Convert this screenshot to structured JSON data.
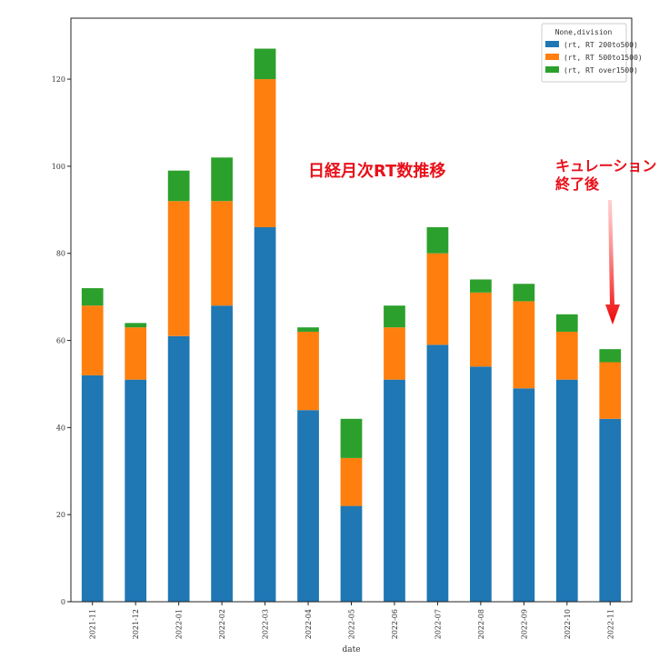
{
  "chart_data": {
    "type": "bar",
    "stacked": true,
    "categories": [
      "2021-11",
      "2021-12",
      "2022-01",
      "2022-02",
      "2022-03",
      "2022-04",
      "2022-05",
      "2022-06",
      "2022-07",
      "2022-08",
      "2022-09",
      "2022-10",
      "2022-11"
    ],
    "series": [
      {
        "name": "(rt, RT 200to500)",
        "color": "#1f77b4",
        "values": [
          52,
          51,
          61,
          68,
          86,
          44,
          22,
          51,
          59,
          54,
          49,
          51,
          42
        ]
      },
      {
        "name": "(rt, RT 500to1500)",
        "color": "#ff7f0e",
        "values": [
          16,
          12,
          31,
          24,
          34,
          18,
          11,
          12,
          21,
          17,
          20,
          11,
          13
        ]
      },
      {
        "name": "(rt, RT over1500)",
        "color": "#2ca02c",
        "values": [
          4,
          1,
          7,
          10,
          7,
          1,
          9,
          5,
          6,
          3,
          4,
          4,
          3
        ]
      }
    ],
    "xlabel": "date",
    "ylabel": "",
    "ylim": [
      0,
      134
    ],
    "yticks": [
      0,
      20,
      40,
      60,
      80,
      100,
      120
    ],
    "legend_title": "None,division",
    "legend_position": "top-right",
    "grid": false,
    "annotations": [
      {
        "text": "日経月次RT数推移",
        "color": "#e8101a"
      },
      {
        "text_lines": [
          "キュレーション",
          "終了後"
        ],
        "color": "#e8101a",
        "arrow_points_to": "2022-11"
      }
    ]
  }
}
